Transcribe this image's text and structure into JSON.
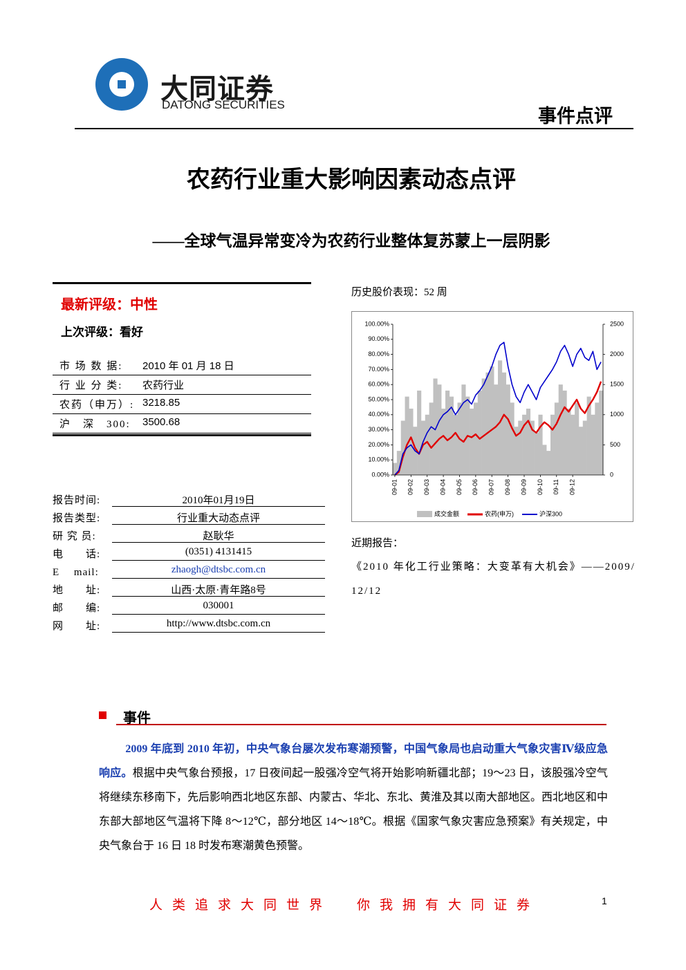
{
  "header": {
    "logo_cn": "大同证券",
    "logo_en": "DATONG SECURITIES",
    "doc_type": "事件点评"
  },
  "title": "农药行业重大影响因素动态点评",
  "subtitle": "——全球气温异常变冷为农药行业整体复苏蒙上一层阴影",
  "rating": {
    "current": "最新评级：中性",
    "previous": "上次评级：看好"
  },
  "market_table": {
    "rows": [
      [
        "市 场 数 据:",
        "2010 年 01 月 18 日"
      ],
      [
        "行 业 分 类:",
        "农药行业"
      ],
      [
        "农药（申万）:",
        "3218.85"
      ],
      [
        "沪　深　300:",
        "3500.68"
      ]
    ]
  },
  "report_info": {
    "rows": [
      [
        "报告时间:",
        "2010年01月19日"
      ],
      [
        "报告类型:",
        "行业重大动态点评"
      ],
      [
        "研 究 员:",
        "赵耿华"
      ],
      [
        "电　　话:",
        "(0351) 4131415"
      ],
      [
        "E　 mail:",
        "zhaogh@dtsbc.com.cn"
      ],
      [
        "地　　址:",
        "山西·太原·青年路8号"
      ],
      [
        "邮　　编:",
        "030001"
      ],
      [
        "网　　址:",
        "http://www.dtsbc.com.cn"
      ]
    ]
  },
  "chart_caption": "历史股价表现：52 周",
  "chart_data": {
    "type": "line",
    "categories": [
      "09-01",
      null,
      null,
      null,
      "09-02",
      null,
      null,
      null,
      "09-03",
      null,
      null,
      null,
      "09-04",
      null,
      null,
      null,
      "09-05",
      null,
      null,
      null,
      "09-06",
      null,
      null,
      null,
      "09-07",
      null,
      null,
      null,
      "09-08",
      null,
      null,
      null,
      "09-09",
      null,
      null,
      null,
      "09-10",
      null,
      null,
      null,
      "09-11",
      null,
      null,
      null,
      "09-12",
      null,
      null,
      null,
      null,
      null,
      null,
      null
    ],
    "ylim": [
      0,
      100
    ],
    "yticks": [
      {
        "value": 0,
        "label": "0.00%"
      },
      {
        "value": 10,
        "label": "10.00%"
      },
      {
        "value": 20,
        "label": "20.00%"
      },
      {
        "value": 30,
        "label": "30.00%"
      },
      {
        "value": 40,
        "label": "40.00%"
      },
      {
        "value": 50,
        "label": "50.00%"
      },
      {
        "value": 60,
        "label": "60.00%"
      },
      {
        "value": 70,
        "label": "70.00%"
      },
      {
        "value": 80,
        "label": "80.00%"
      },
      {
        "value": 90,
        "label": "90.00%"
      },
      {
        "value": 100,
        "label": "100.00%"
      }
    ],
    "y2lim": [
      0,
      2500
    ],
    "y2ticks": [
      0,
      500,
      1000,
      1500,
      2000,
      2500
    ],
    "series": [
      {
        "name": "成交金额",
        "type": "bar",
        "axis": "y2",
        "color": "#c0c0c0",
        "values": [
          200,
          400,
          900,
          1300,
          1100,
          800,
          1400,
          900,
          1000,
          1200,
          1600,
          1500,
          1100,
          1400,
          1300,
          1000,
          1200,
          1500,
          1300,
          1100,
          1200,
          1400,
          1600,
          1700,
          1800,
          1500,
          1900,
          1700,
          1500,
          1200,
          800,
          900,
          1000,
          1100,
          900,
          700,
          1000,
          500,
          400,
          1000,
          1200,
          1500,
          1400,
          1100,
          1000,
          1200,
          800,
          900,
          1300,
          1000,
          1200,
          1400
        ]
      },
      {
        "name": "农药(申万)",
        "type": "line",
        "color": "#e00000",
        "values": [
          0,
          2,
          12,
          20,
          25,
          18,
          14,
          20,
          22,
          18,
          21,
          24,
          26,
          23,
          25,
          28,
          24,
          22,
          26,
          25,
          27,
          24,
          26,
          28,
          30,
          32,
          35,
          40,
          37,
          31,
          26,
          28,
          33,
          36,
          30,
          28,
          32,
          35,
          33,
          30,
          34,
          40,
          45,
          42,
          46,
          50,
          44,
          41,
          46,
          50,
          55,
          62
        ]
      },
      {
        "name": "沪深300",
        "type": "line",
        "color": "#0000cc",
        "values": [
          0,
          3,
          14,
          18,
          20,
          16,
          14,
          22,
          28,
          32,
          30,
          36,
          40,
          42,
          45,
          40,
          44,
          48,
          50,
          47,
          53,
          56,
          60,
          66,
          72,
          80,
          86,
          88,
          72,
          60,
          52,
          48,
          55,
          60,
          55,
          50,
          58,
          62,
          66,
          70,
          75,
          82,
          86,
          80,
          72,
          80,
          84,
          78,
          76,
          82,
          70,
          75
        ]
      }
    ]
  },
  "recent_reports": {
    "heading": "近期报告：",
    "items": [
      "《2010 年化工行业策略：大变革有大机会》——2009/12/12"
    ]
  },
  "event": {
    "heading": "事件",
    "lead": "2009 年底到 2010 年初，中央气象台屡次发布寒潮预警，中国气象局也启动重大气象灾害Ⅳ级应急响应。",
    "body": "根据中央气象台预报，17 日夜间起一股强冷空气将开始影响新疆北部；19～23 日，该股强冷空气将继续东移南下，先后影响西北地区东部、内蒙古、华北、东北、黄淮及其以南大部地区。西北地区和中东部大部地区气温将下降 8～12℃，部分地区 14～18℃。根据《国家气象灾害应急预案》有关规定，中央气象台于 16 日 18 时发布寒潮黄色预警。"
  },
  "footer": {
    "slogan_left": "人类追求大同世界",
    "slogan_right": "你我拥有大同证券",
    "page": "1"
  }
}
